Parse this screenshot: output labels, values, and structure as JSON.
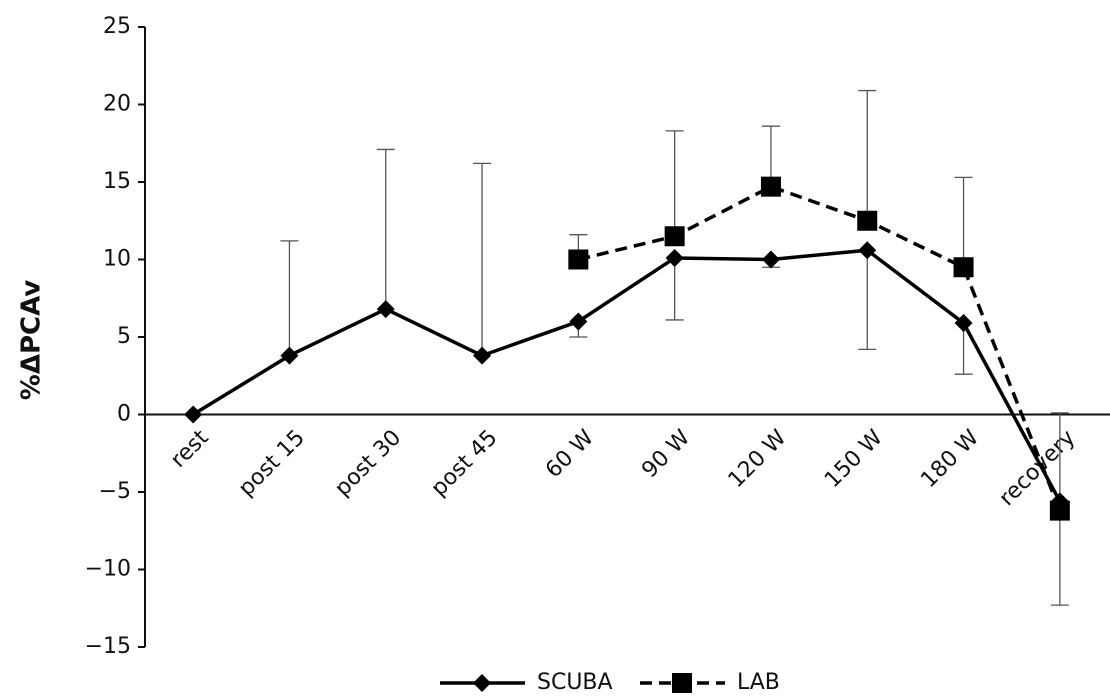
{
  "chart_data": {
    "type": "line",
    "y_label": "%ΔPCAv",
    "categories": [
      "rest",
      "post 15",
      "post 30",
      "post 45",
      "60 W",
      "90 W",
      "120 W",
      "150 W",
      "180 W",
      "recovery"
    ],
    "series": [
      {
        "name": "SCUBA",
        "color": "#000000",
        "marker": "diamond",
        "dashed": false,
        "values": [
          0,
          3.8,
          6.8,
          3.8,
          6.0,
          10.1,
          10.0,
          10.6,
          5.9,
          -5.6
        ],
        "error_plus": [
          null,
          7.4,
          10.3,
          12.4,
          null,
          null,
          null,
          null,
          null,
          5.7
        ],
        "error_minus": [
          null,
          null,
          null,
          null,
          1.0,
          4.0,
          0.5,
          6.4,
          3.3,
          null
        ]
      },
      {
        "name": "LAB",
        "color": "#000000",
        "marker": "square",
        "dashed": true,
        "values": [
          null,
          null,
          null,
          null,
          10.0,
          11.5,
          14.7,
          12.5,
          9.5,
          -6.2
        ],
        "error_plus": [
          null,
          null,
          null,
          null,
          1.6,
          6.8,
          3.9,
          8.4,
          5.8,
          null
        ],
        "error_minus": [
          null,
          null,
          null,
          null,
          null,
          null,
          null,
          null,
          null,
          6.1
        ]
      }
    ],
    "ylim": [
      -15,
      25
    ],
    "yticks": [
      {
        "value": -15,
        "label": "−15"
      },
      {
        "value": -10,
        "label": "−10"
      },
      {
        "value": -5,
        "label": "−5"
      },
      0,
      5,
      10,
      15,
      20,
      25
    ],
    "legend": "bottom"
  }
}
